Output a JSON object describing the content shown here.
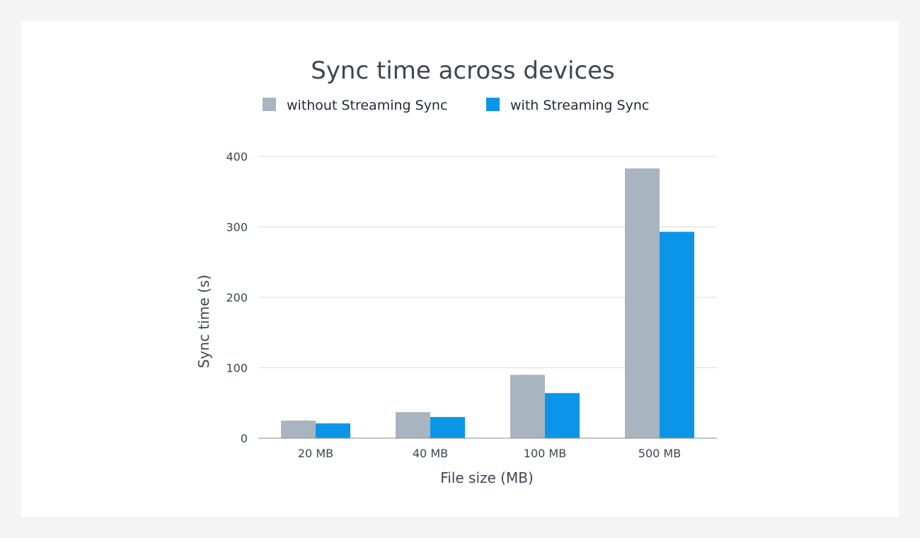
{
  "chart_data": {
    "type": "bar",
    "title": "Sync time across devices",
    "xlabel": "File size (MB)",
    "ylabel": "Sync time (s)",
    "categories": [
      "20 MB",
      "40 MB",
      "100 MB",
      "500 MB"
    ],
    "series": [
      {
        "name": "without Streaming Sync",
        "color": "#a8b5c1",
        "values": [
          25,
          37,
          90,
          383
        ]
      },
      {
        "name": "with Streaming Sync",
        "color": "#0b95e8",
        "values": [
          21,
          30,
          64,
          293
        ]
      }
    ],
    "ylim": [
      0,
      400
    ],
    "yticks": [
      0,
      100,
      200,
      300,
      400
    ],
    "grid": true,
    "legend_position": "top-center"
  }
}
